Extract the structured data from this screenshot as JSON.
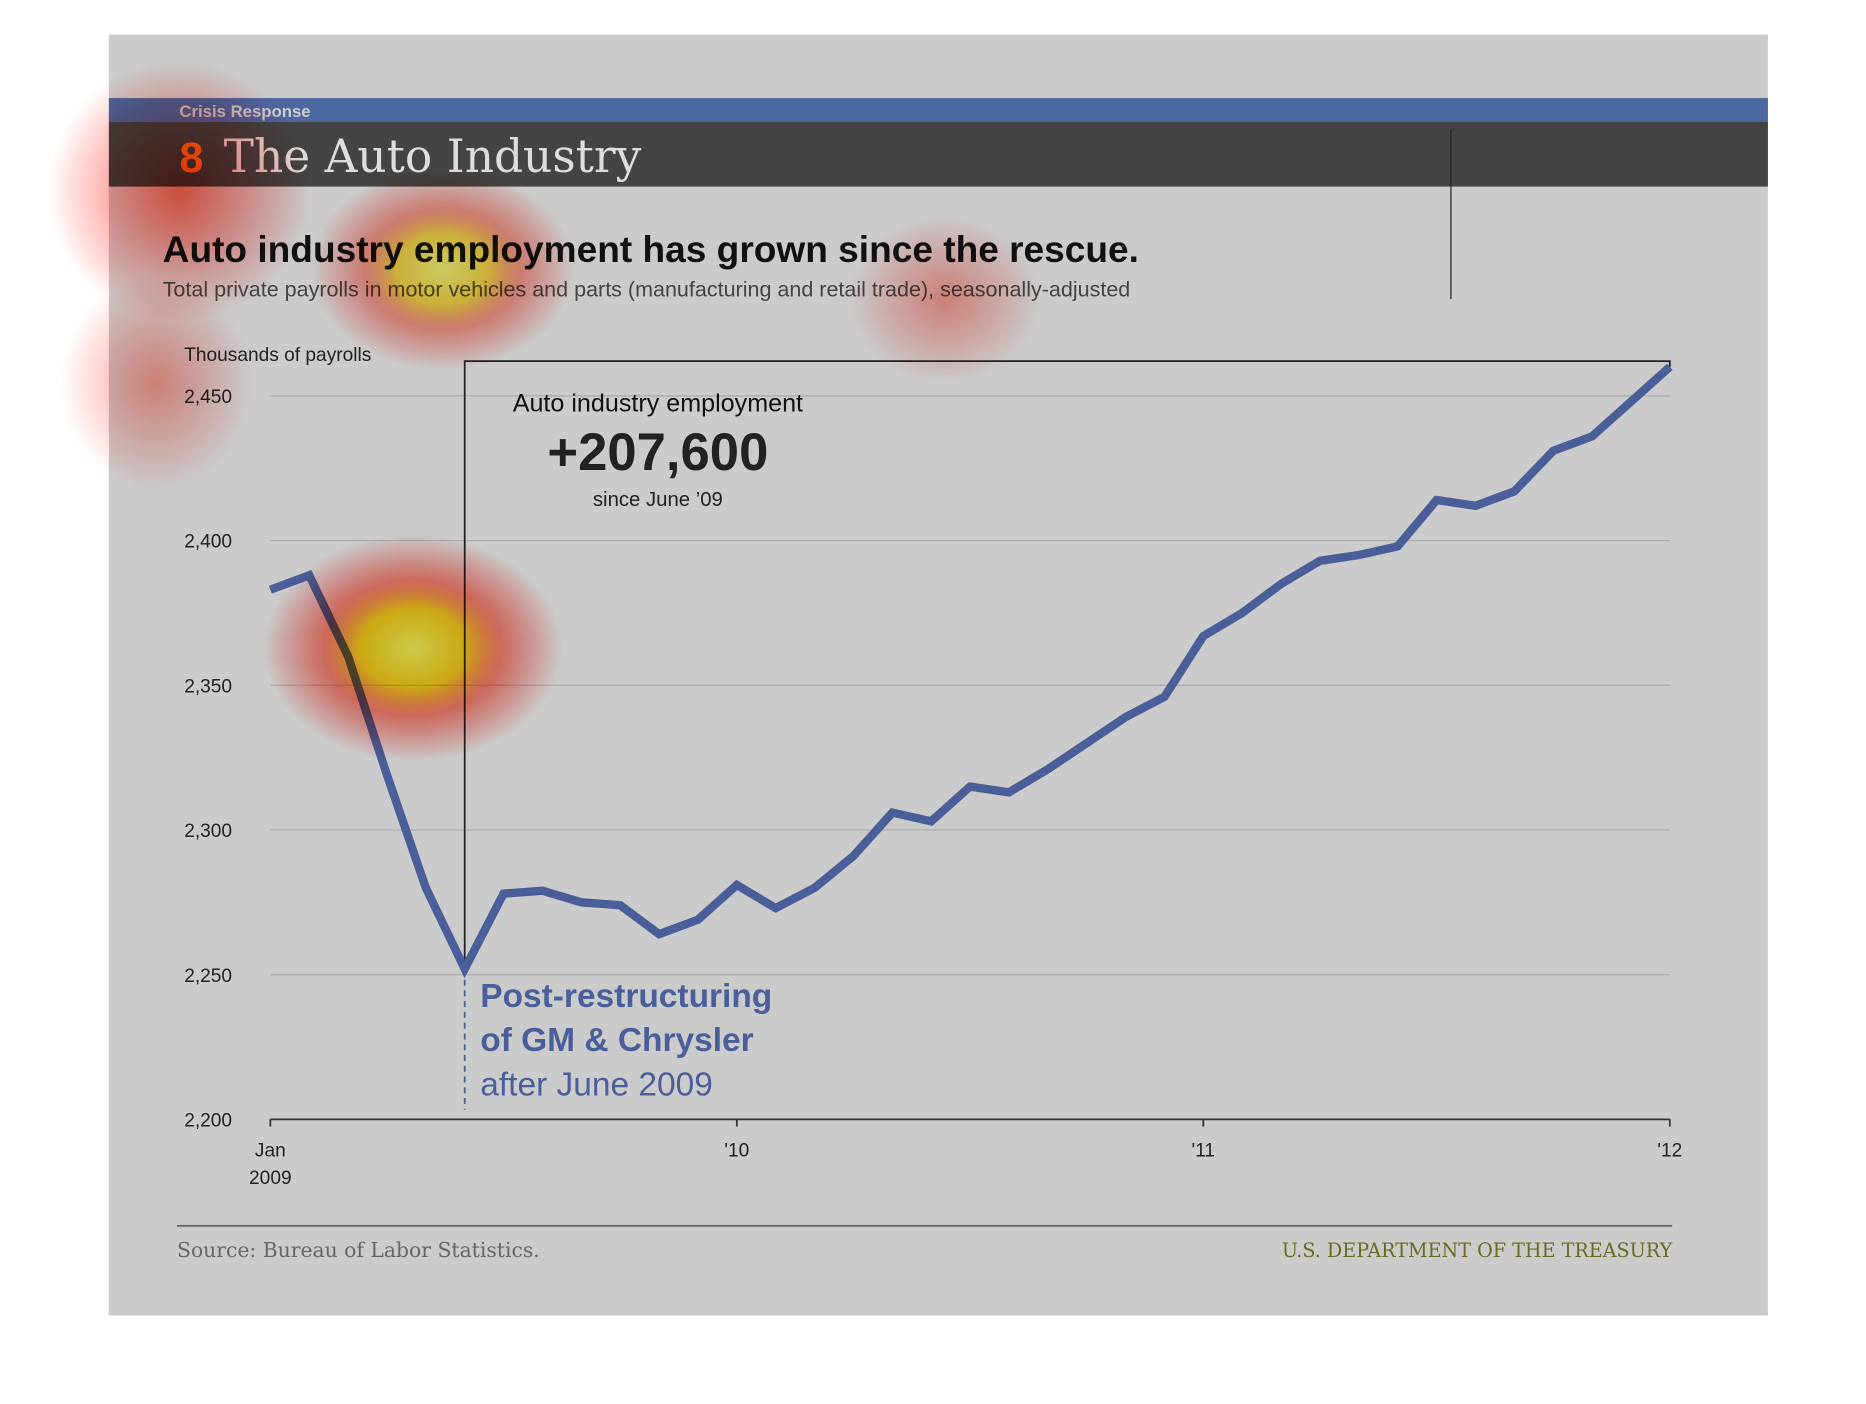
{
  "header": {
    "section": "Crisis Response",
    "number": "8",
    "title": "The Auto Industry"
  },
  "chart_data": {
    "type": "line",
    "title": "Auto industry employment has grown since the rescue.",
    "subtitle": "Total private payrolls in motor vehicles and parts (manufacturing and retail trade), seasonally-adjusted",
    "y_label": "Thousands of payrolls",
    "categories": [
      "Jan 2009",
      null,
      null,
      null,
      null,
      null,
      null,
      null,
      null,
      null,
      null,
      null,
      "'10",
      null,
      null,
      null,
      null,
      null,
      null,
      null,
      null,
      null,
      null,
      null,
      "'11",
      null,
      null,
      null,
      null,
      null,
      null,
      null,
      null,
      null,
      null,
      null,
      "'12"
    ],
    "values": [
      2383,
      2388,
      2360,
      2319,
      2280,
      2252,
      2278,
      2279,
      2275,
      2274,
      2264,
      2269,
      2281,
      2273,
      2280,
      2291,
      2306,
      2303,
      2315,
      2313,
      2321,
      2330,
      2339,
      2346,
      2367,
      2375,
      2385,
      2393,
      2395,
      2398,
      2414,
      2412,
      2417,
      2431,
      2436,
      2448,
      2460
    ],
    "color": "#4a5f9a",
    "ylim": [
      2200,
      2460
    ],
    "yticks": [
      {
        "value": 2200,
        "label": "2,200"
      },
      {
        "value": 2250,
        "label": "2,250"
      },
      {
        "value": 2300,
        "label": "2,300"
      },
      {
        "value": 2350,
        "label": "2,350"
      },
      {
        "value": 2400,
        "label": "2,400"
      },
      {
        "value": 2450,
        "label": "2,450"
      }
    ],
    "grid": true,
    "annotations": {
      "box_title": "Auto industry employment",
      "box_value": "+207,600",
      "box_note": "since June ’09",
      "restructuring_1": "Post-restructuring",
      "restructuring_2": "of GM & Chrysler",
      "restructuring_3": "after June 2009"
    }
  },
  "footer": {
    "source": "Source: Bureau of Labor Statistics.",
    "agency": "U.S. DEPARTMENT OF THE TREASURY"
  }
}
